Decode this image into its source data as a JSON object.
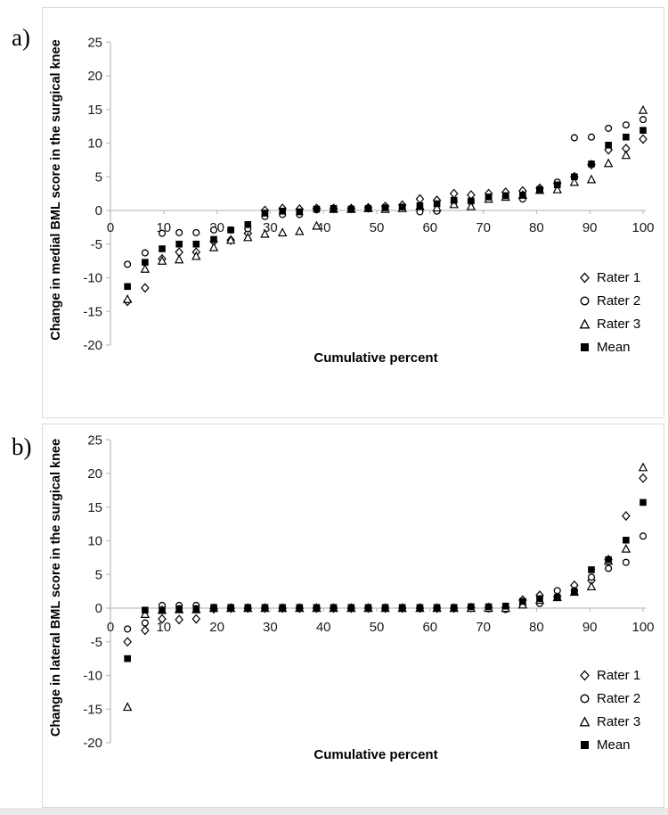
{
  "figure": {
    "panel_a_label": "a)",
    "panel_b_label": "b)"
  },
  "chart_data": [
    {
      "type": "scatter",
      "panel": "a",
      "ylabel": "Change in medial BML score in the surgical knee",
      "xlabel": "Cumulative percent",
      "ylim": [
        -20,
        25
      ],
      "xlim": [
        0,
        100
      ],
      "yticks": [
        25,
        20,
        15,
        10,
        5,
        0,
        -5,
        -10,
        -15,
        -20
      ],
      "xticks": [
        0,
        10,
        20,
        30,
        40,
        50,
        60,
        70,
        80,
        90,
        100
      ],
      "grid": false,
      "legend_position": "lower-right",
      "x": [
        3.2,
        6.5,
        9.7,
        12.9,
        16.1,
        19.4,
        22.6,
        25.8,
        29,
        32.3,
        35.5,
        38.7,
        41.9,
        45.2,
        48.4,
        51.6,
        54.8,
        58.1,
        61.3,
        64.5,
        67.7,
        71,
        74.2,
        77.4,
        80.6,
        83.9,
        87.1,
        90.3,
        93.5,
        96.8,
        100
      ],
      "series": [
        {
          "name": "Rater 1",
          "marker": "diamond",
          "values": [
            -13.5,
            -11.5,
            -7.2,
            -6.2,
            -6.2,
            -4.6,
            -4.4,
            -3.4,
            0,
            0.3,
            0.2,
            0.3,
            0.3,
            0.3,
            0.4,
            0.6,
            0.8,
            1.7,
            1.5,
            2.5,
            2.3,
            2.5,
            2.7,
            2.9,
            3.3,
            4,
            5,
            6.8,
            9,
            9.2,
            10.6
          ]
        },
        {
          "name": "Rater 2",
          "marker": "circle",
          "values": [
            -8,
            -6.3,
            -3.4,
            -3.3,
            -3.3,
            -2.9,
            -2.9,
            -2.7,
            -0.9,
            -0.6,
            -0.6,
            0.1,
            0.2,
            0.2,
            0.3,
            0.3,
            0.3,
            -0.2,
            -0.1,
            1.3,
            1.4,
            1.9,
            2,
            1.7,
            3,
            4.2,
            10.8,
            10.9,
            12.2,
            12.7,
            13.5
          ]
        },
        {
          "name": "Rater 3",
          "marker": "triangle",
          "values": [
            -13.2,
            -8.7,
            -7.5,
            -7.3,
            -6.8,
            -5.5,
            -4.4,
            -4,
            -3.5,
            -3.3,
            -3.1,
            -2.3,
            0.2,
            0.2,
            0.3,
            0.2,
            0.3,
            0.6,
            0.4,
            0.9,
            0.6,
            1.7,
            2,
            2.3,
            3,
            3.1,
            4.2,
            4.6,
            7,
            8.2,
            14.9
          ]
        },
        {
          "name": "Mean",
          "marker": "square",
          "values": [
            -11.3,
            -7.7,
            -5.7,
            -5,
            -5,
            -4.3,
            -2.9,
            -2.1,
            -0.4,
            -0.1,
            -0.2,
            0.2,
            0.3,
            0.2,
            0.3,
            0.4,
            0.5,
            0.7,
            1,
            1.5,
            1.4,
            2,
            2.2,
            2.3,
            3.1,
            3.8,
            5,
            6.9,
            9.7,
            10.9,
            11.9
          ]
        }
      ]
    },
    {
      "type": "scatter",
      "panel": "b",
      "ylabel": "Change in lateral BML score in the surgical knee",
      "xlabel": "Cumulative percent",
      "ylim": [
        -20,
        25
      ],
      "xlim": [
        0,
        100
      ],
      "yticks": [
        25,
        20,
        15,
        10,
        5,
        0,
        -5,
        -10,
        -15,
        -20
      ],
      "xticks": [
        0,
        10,
        20,
        30,
        40,
        50,
        60,
        70,
        80,
        90,
        100
      ],
      "grid": false,
      "legend_position": "lower-right",
      "x": [
        3.2,
        6.5,
        9.7,
        12.9,
        16.1,
        19.4,
        22.6,
        25.8,
        29,
        32.3,
        35.5,
        38.7,
        41.9,
        45.2,
        48.4,
        51.6,
        54.8,
        58.1,
        61.3,
        64.5,
        67.7,
        71,
        74.2,
        77.4,
        80.6,
        83.9,
        87.1,
        90.3,
        93.5,
        96.8,
        100
      ],
      "series": [
        {
          "name": "Rater 1",
          "marker": "diamond",
          "values": [
            -5,
            -3.3,
            -1.6,
            -1.7,
            -1.6,
            -0.1,
            0,
            0,
            0,
            0,
            0,
            0,
            0,
            0,
            0,
            0,
            0,
            0,
            0,
            0,
            0.1,
            0.1,
            0.1,
            1.2,
            1.9,
            1.7,
            3.4,
            4.1,
            7.2,
            13.7,
            19.3
          ]
        },
        {
          "name": "Rater 2",
          "marker": "circle",
          "values": [
            -3.1,
            -2.2,
            0.4,
            0.4,
            0.4,
            0.1,
            0.1,
            0,
            0,
            0,
            0,
            0,
            0,
            0,
            0,
            0,
            0,
            0,
            0,
            0,
            0,
            -0.1,
            -0.2,
            0.5,
            0.7,
            2.6,
            2.6,
            4.6,
            5.9,
            6.8,
            10.7
          ]
        },
        {
          "name": "Rater 3",
          "marker": "triangle",
          "values": [
            -14.7,
            -0.9,
            -0.3,
            -0.2,
            -0.2,
            0,
            0,
            0,
            0,
            0,
            0,
            0,
            0,
            0,
            0,
            0,
            0,
            0,
            0,
            0,
            0,
            0,
            0,
            0.5,
            1.2,
            1.6,
            2.4,
            3.2,
            7,
            8.8,
            20.9
          ]
        },
        {
          "name": "Mean",
          "marker": "square",
          "values": [
            -7.5,
            -0.3,
            -0.3,
            -0.1,
            -0.1,
            0.1,
            0.1,
            0.1,
            0.1,
            0.1,
            0.1,
            0.1,
            0.1,
            0.1,
            0.1,
            0.1,
            0.1,
            0.1,
            0.1,
            0.1,
            0.2,
            0.2,
            0.3,
            1,
            1.4,
            1.6,
            2.4,
            5.7,
            7.2,
            10.1,
            15.7
          ]
        }
      ]
    }
  ],
  "style": {
    "axis_color": "#bfbfbf",
    "marker_color": "#000000",
    "text_color": "#1a1a1a"
  }
}
